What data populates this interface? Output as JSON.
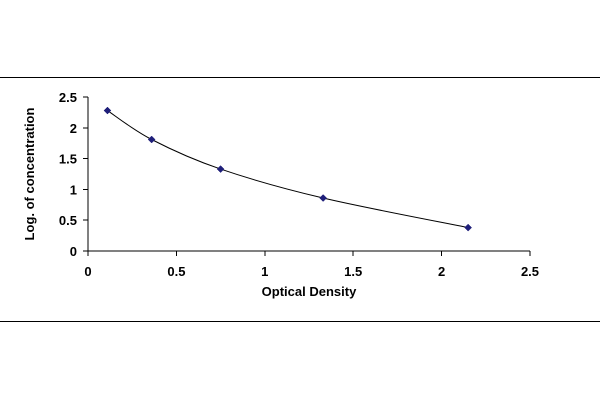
{
  "chart_data": {
    "type": "scatter",
    "title": "",
    "xlabel": "Optical Density",
    "ylabel": "Log. of concentration",
    "xlim": [
      0,
      2.5
    ],
    "ylim": [
      0,
      2.5
    ],
    "x_ticks": [
      "0",
      "0.5",
      "1",
      "1.5",
      "2",
      "2.5"
    ],
    "y_ticks": [
      "0",
      "0.5",
      "1",
      "1.5",
      "2",
      "2.5"
    ],
    "grid": false,
    "legend": "none",
    "trendline": "smooth curve through points",
    "marker_color": "#1f1f7a",
    "series": [
      {
        "x": [
          0.11,
          0.36,
          0.75,
          1.33,
          2.15
        ],
        "y": [
          2.28,
          1.81,
          1.33,
          0.86,
          0.38
        ]
      }
    ]
  }
}
